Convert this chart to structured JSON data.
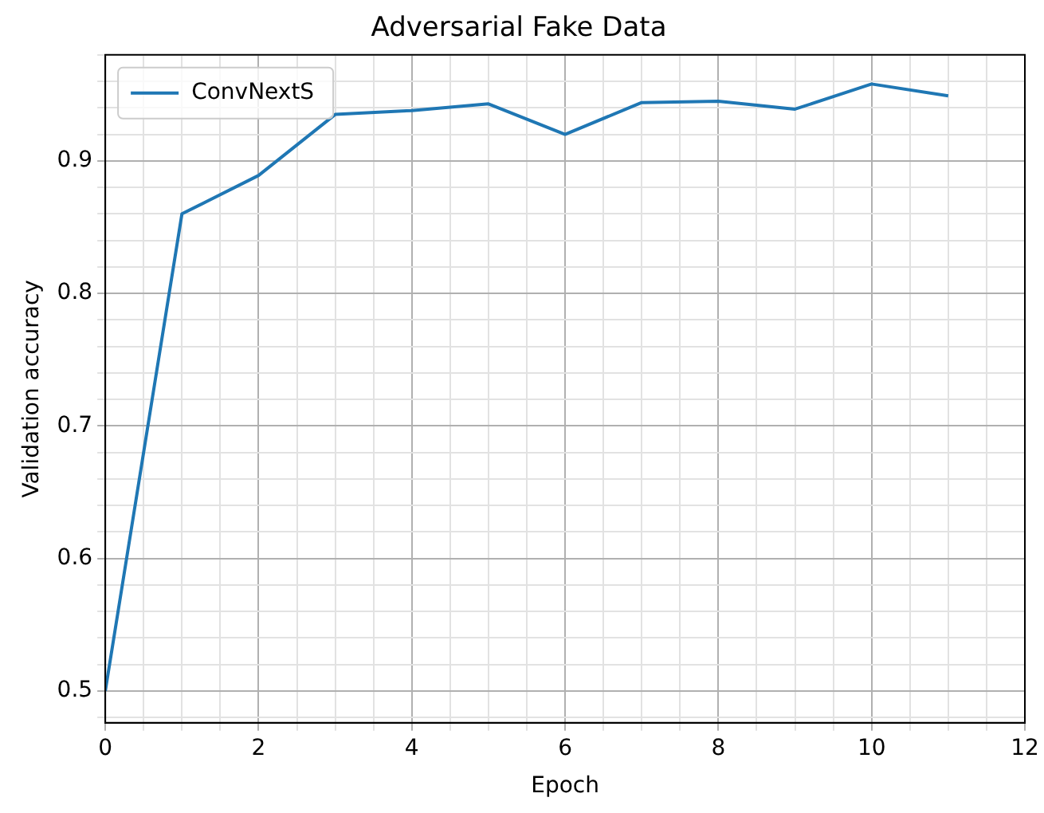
{
  "chart_data": {
    "type": "line",
    "title": "Adversarial Fake Data",
    "xlabel": "Epoch",
    "ylabel": "Validation accuracy",
    "x": [
      0,
      1,
      2,
      3,
      4,
      5,
      6,
      7,
      8,
      9,
      10,
      11
    ],
    "series": [
      {
        "name": "ConvNextS",
        "color": "#1f77b4",
        "values": [
          0.5,
          0.86,
          0.889,
          0.935,
          0.938,
          0.943,
          0.92,
          0.944,
          0.945,
          0.939,
          0.958,
          0.949
        ]
      }
    ],
    "xlim": [
      0,
      12
    ],
    "xticks": [
      0,
      {
        "value": 0.5,
        "label": null
      },
      2,
      {
        "value": 2.5,
        "label": null
      },
      4,
      {
        "value": 4.5,
        "label": null
      },
      6,
      {
        "value": 6.5,
        "label": null
      },
      8,
      {
        "value": 8.5,
        "label": null
      },
      10,
      {
        "value": 10.5,
        "label": null
      },
      12,
      {
        "value": 1,
        "label": null
      },
      {
        "value": 1.5,
        "label": null
      },
      {
        "value": 3,
        "label": null
      },
      {
        "value": 3.5,
        "label": null
      },
      {
        "value": 5,
        "label": null
      },
      {
        "value": 5.5,
        "label": null
      },
      {
        "value": 7,
        "label": null
      },
      {
        "value": 7.5,
        "label": null
      },
      {
        "value": 9,
        "label": null
      },
      {
        "value": 9.5,
        "label": null
      },
      {
        "value": 11,
        "label": null
      },
      {
        "value": 11.5,
        "label": null
      }
    ],
    "ylim": [
      0.476,
      0.98
    ],
    "yticks": [
      0.5,
      0.6,
      0.7,
      0.8,
      0.9,
      {
        "value": 0.48,
        "label": null
      },
      {
        "value": 0.52,
        "label": null
      },
      {
        "value": 0.54,
        "label": null
      },
      {
        "value": 0.56,
        "label": null
      },
      {
        "value": 0.58,
        "label": null
      },
      {
        "value": 0.62,
        "label": null
      },
      {
        "value": 0.64,
        "label": null
      },
      {
        "value": 0.66,
        "label": null
      },
      {
        "value": 0.68,
        "label": null
      },
      {
        "value": 0.72,
        "label": null
      },
      {
        "value": 0.74,
        "label": null
      },
      {
        "value": 0.76,
        "label": null
      },
      {
        "value": 0.78,
        "label": null
      },
      {
        "value": 0.82,
        "label": null
      },
      {
        "value": 0.84,
        "label": null
      },
      {
        "value": 0.86,
        "label": null
      },
      {
        "value": 0.88,
        "label": null
      },
      {
        "value": 0.92,
        "label": null
      },
      {
        "value": 0.94,
        "label": null
      },
      {
        "value": 0.96,
        "label": null
      },
      {
        "value": 0.98,
        "label": null
      }
    ],
    "grid": true,
    "legend": "top left",
    "marker": "none",
    "line_style": "solid"
  }
}
